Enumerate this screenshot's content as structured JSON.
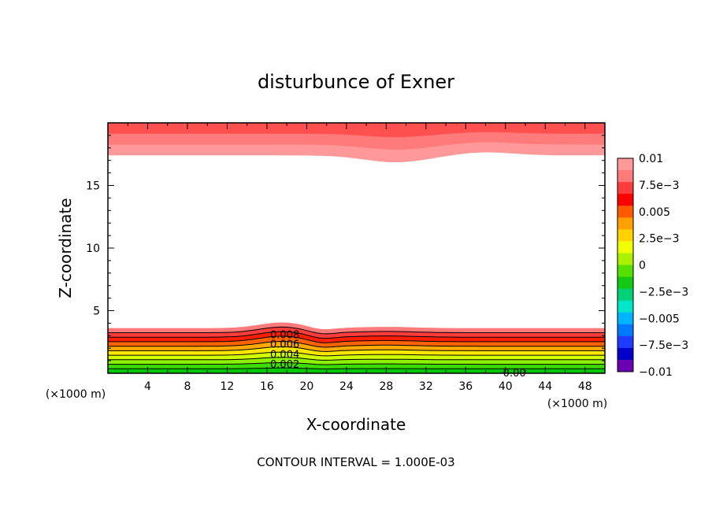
{
  "chart_data": {
    "type": "contour",
    "title": "disturbunce of Exner",
    "xlabel": "X-coordinate",
    "ylabel": "Z-coordinate",
    "x_unit": "(×1000 m)",
    "y_unit": "(×1000 m)",
    "xlim": [
      0,
      50
    ],
    "ylim": [
      0,
      20
    ],
    "x_ticks": [
      4,
      8,
      12,
      16,
      20,
      24,
      28,
      32,
      36,
      40,
      44,
      48
    ],
    "y_ticks": [
      5,
      10,
      15
    ],
    "colorbar": {
      "min": -0.01,
      "max": 0.01,
      "labels": [
        "0.01",
        "7.5e-3",
        "0.005",
        "2.5e-3",
        "0",
        "-2.5e-3",
        "-0.005",
        "-7.5e-3",
        "-0.01"
      ],
      "colors": [
        "#ff9999",
        "#ff7a7a",
        "#ff3c3c",
        "#ff0000",
        "#ff5a00",
        "#ff9f00",
        "#ffd200",
        "#f0ff00",
        "#aaf000",
        "#55e000",
        "#14c814",
        "#00d078",
        "#00e6c8",
        "#00b4ff",
        "#0078ff",
        "#1e3cff",
        "#0000c8",
        "#6a00b0"
      ]
    },
    "contour_interval_text": "CONTOUR INTERVAL = 1.000E-03",
    "contour_labels": [
      {
        "text": "0.008",
        "x": 17.8,
        "z": 3.1
      },
      {
        "text": "0.006",
        "x": 17.8,
        "z": 2.35
      },
      {
        "text": "0.004",
        "x": 17.8,
        "z": 1.55
      },
      {
        "text": "0.002",
        "x": 17.8,
        "z": 0.75
      },
      {
        "text": "0.00",
        "x": 40.9,
        "z": 0.05
      }
    ],
    "fields": {
      "bottom_band_top_z": 3.6,
      "bottom_band_levels": 10,
      "top_band_bottom_z": 17.4,
      "top_band_levels": 3
    }
  }
}
